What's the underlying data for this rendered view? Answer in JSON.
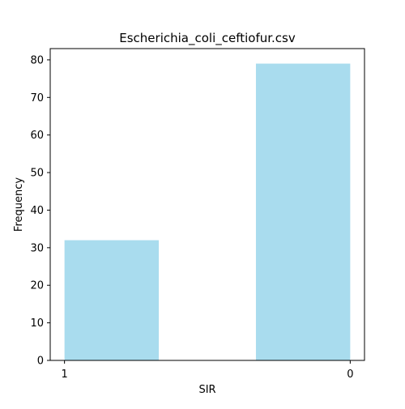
{
  "chart_data": {
    "type": "bar",
    "title": "Escherichia_coli_ceftiofur.csv",
    "xlabel": "SIR",
    "ylabel": "Frequency",
    "x_tick_labels": [
      "1",
      "0"
    ],
    "bars": [
      {
        "x_from": 1.0,
        "x_to": 0.67,
        "value": 32
      },
      {
        "x_from": 0.33,
        "x_to": 0.0,
        "value": 79
      }
    ],
    "xlim": [
      1.05,
      -0.05
    ],
    "ylim": [
      0,
      83
    ],
    "y_ticks": [
      0,
      10,
      20,
      30,
      40,
      50,
      60,
      70,
      80
    ],
    "bar_color": "#a9dcee",
    "grid": false
  }
}
